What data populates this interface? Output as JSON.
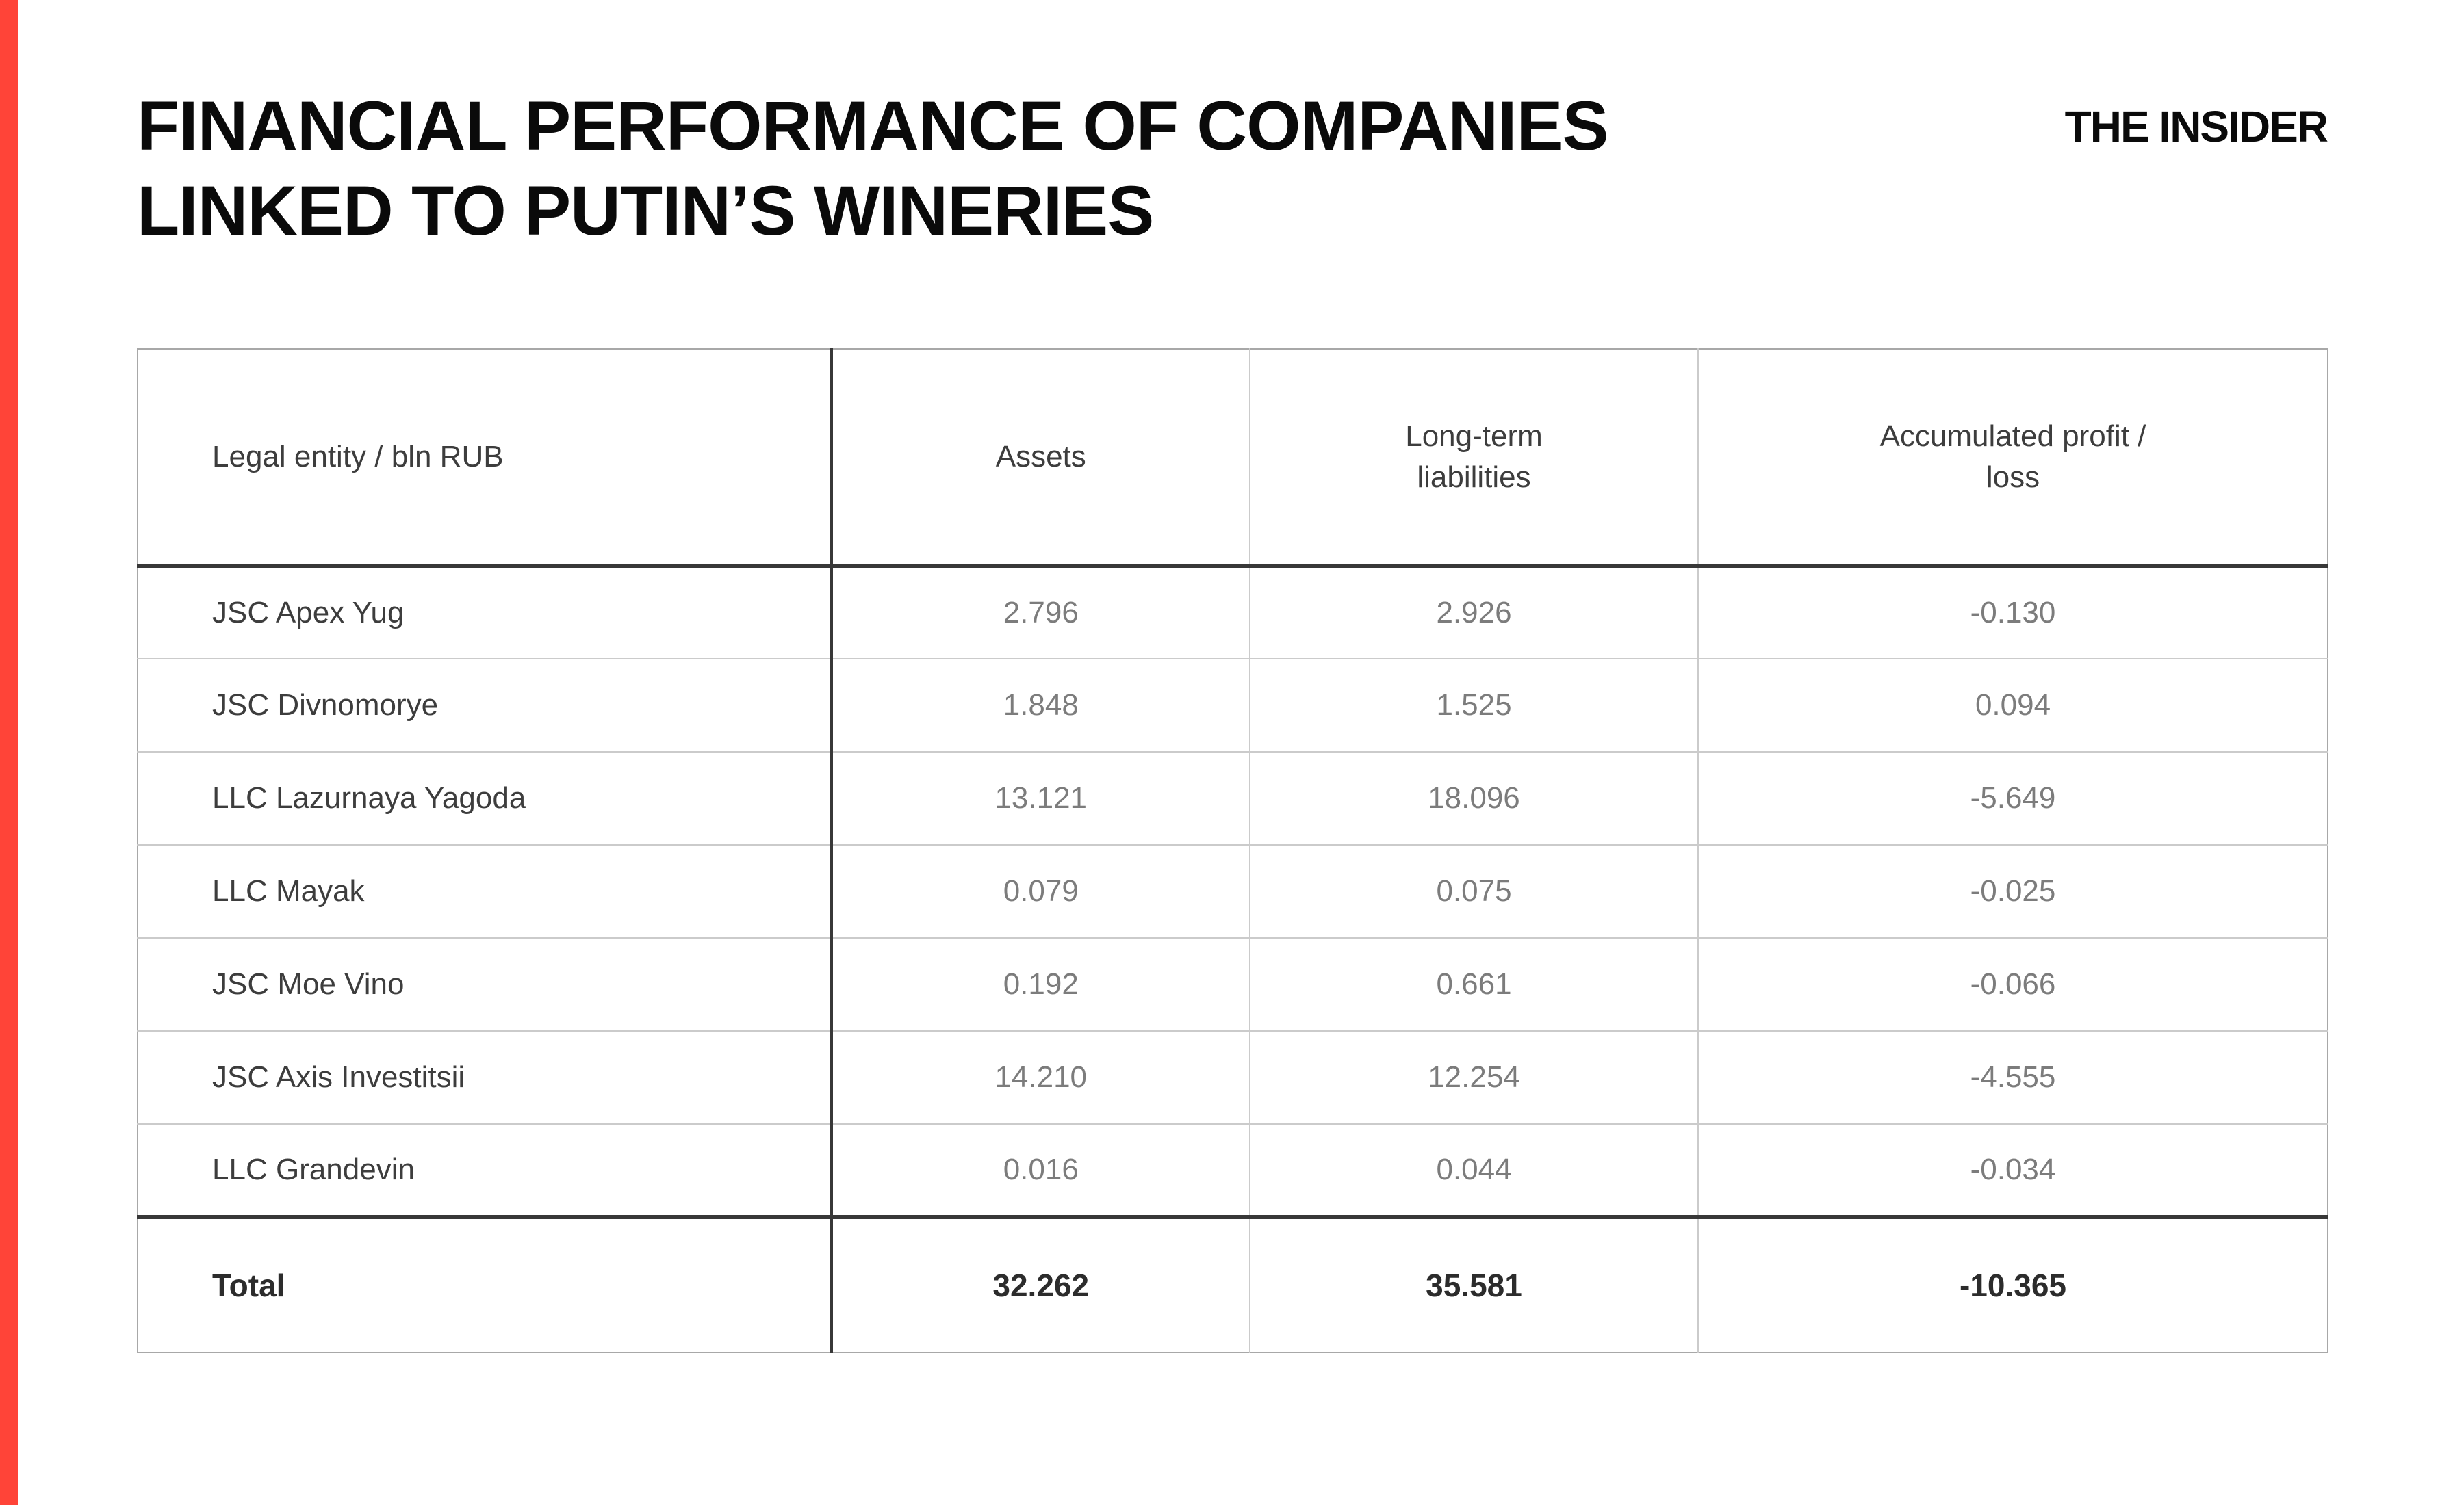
{
  "page": {
    "title": "FINANCIAL PERFORMANCE OF COMPANIES\nLINKED TO PUTIN’S WINERIES",
    "logo": "THE INSIDER",
    "accent_color": "#ff4438"
  },
  "table": {
    "headers": {
      "entity": "Legal entity / bln RUB",
      "assets": "Assets",
      "liabilities": "Long-term\nliabilities",
      "profit": "Accumulated profit /\nloss"
    },
    "rows": [
      {
        "name": "JSC Apex Yug",
        "assets": "2.796",
        "liabilities": "2.926",
        "profit": "-0.130"
      },
      {
        "name": "JSC Divnomorye",
        "assets": "1.848",
        "liabilities": "1.525",
        "profit": "0.094"
      },
      {
        "name": "LLC Lazurnaya Yagoda",
        "assets": "13.121",
        "liabilities": "18.096",
        "profit": "-5.649"
      },
      {
        "name": "LLC Mayak",
        "assets": "0.079",
        "liabilities": "0.075",
        "profit": "-0.025"
      },
      {
        "name": "JSC Moe Vino",
        "assets": "0.192",
        "liabilities": "0.661",
        "profit": "-0.066"
      },
      {
        "name": "JSC Axis Investitsii",
        "assets": "14.210",
        "liabilities": "12.254",
        "profit": "-4.555"
      },
      {
        "name": "LLC Grandevin",
        "assets": "0.016",
        "liabilities": "0.044",
        "profit": "-0.034"
      }
    ],
    "total": {
      "name": "Total",
      "assets": "32.262",
      "liabilities": "35.581",
      "profit": "-10.365"
    }
  },
  "chart_data": {
    "type": "table",
    "title": "Financial performance of companies linked to Putin's wineries",
    "unit": "bln RUB",
    "columns": [
      "Legal entity / bln RUB",
      "Assets",
      "Long-term liabilities",
      "Accumulated profit / loss"
    ],
    "rows": [
      [
        "JSC Apex Yug",
        2.796,
        2.926,
        -0.13
      ],
      [
        "JSC Divnomorye",
        1.848,
        1.525,
        0.094
      ],
      [
        "LLC Lazurnaya Yagoda",
        13.121,
        18.096,
        -5.649
      ],
      [
        "LLC Mayak",
        0.079,
        0.075,
        -0.025
      ],
      [
        "JSC Moe Vino",
        0.192,
        0.661,
        -0.066
      ],
      [
        "JSC Axis Investitsii",
        14.21,
        12.254,
        -4.555
      ],
      [
        "LLC Grandevin",
        0.016,
        0.044,
        -0.034
      ]
    ],
    "total_row": [
      "Total",
      32.262,
      35.581,
      -10.365
    ]
  }
}
